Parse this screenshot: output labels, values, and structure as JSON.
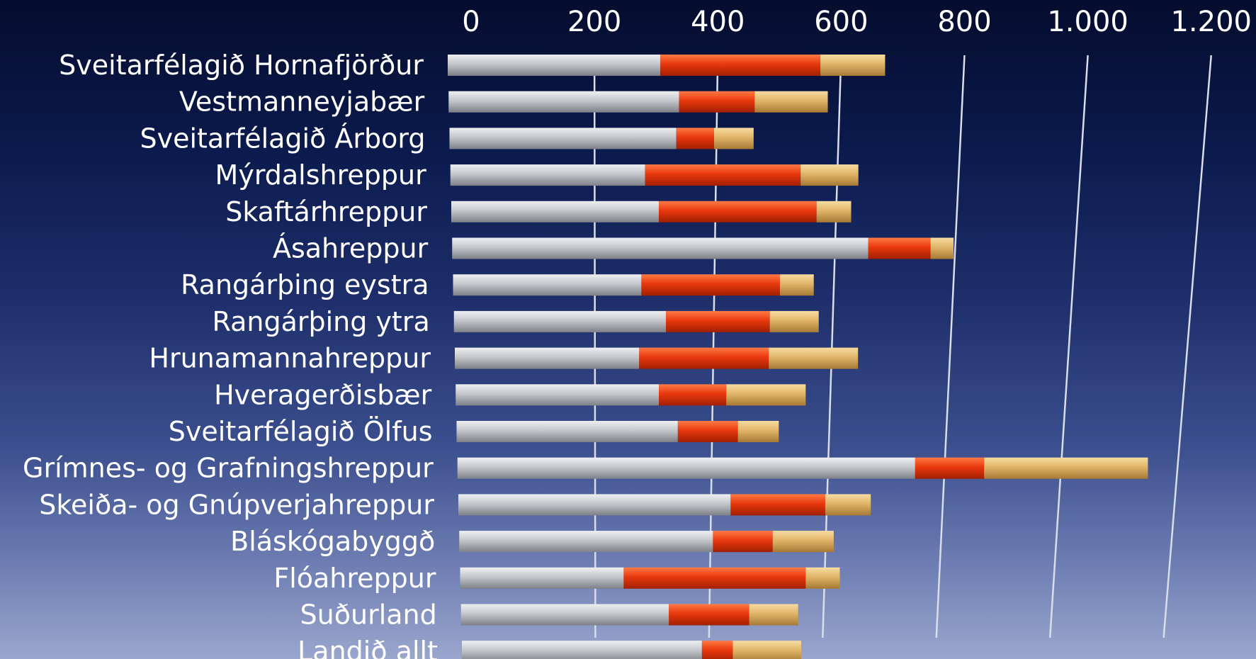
{
  "chart_data": {
    "type": "bar",
    "orientation": "horizontal",
    "stacked": true,
    "title": "",
    "xlabel": "",
    "ylabel": "",
    "xlim": [
      0,
      1200
    ],
    "x_ticks": [
      0,
      200,
      400,
      600,
      800,
      1000,
      1200
    ],
    "x_tick_labels": [
      "0",
      "200",
      "400",
      "600",
      "800",
      "1.000",
      "1.200"
    ],
    "grid": true,
    "legend": "none",
    "categories": [
      "Sveitarfélagið Hornafjörður",
      "Vestmanneyjabær",
      "Sveitarfélagið Árborg",
      "Mýrdalshreppur",
      "Skaftárhreppur",
      "Ásahreppur",
      "Rangárþing eystra",
      "Rangárþing ytra",
      "Hrunamannahreppur",
      "Hveragerðisbær",
      "Sveitarfélagið Ölfus",
      "Grímnes- og Grafningshreppur",
      "Skeiða- og Gnúpverjahreppur",
      "Bláskógabyggð",
      "Flóahreppur",
      "Suðurland",
      "Landið allt"
    ],
    "series": [
      {
        "color": "#c4c6ca",
        "values": [
          310,
          340,
          335,
          283,
          305,
          650,
          275,
          315,
          270,
          302,
          333,
          728,
          420,
          390,
          240,
          315,
          370
        ]
      },
      {
        "color": "#e8380d",
        "values": [
          262,
          124,
          62,
          256,
          260,
          103,
          229,
          172,
          215,
          112,
          100,
          115,
          158,
          100,
          305,
          135,
          52
        ]
      },
      {
        "color": "#e0b468",
        "values": [
          106,
          120,
          65,
          95,
          57,
          38,
          56,
          81,
          148,
          132,
          68,
          273,
          76,
          102,
          57,
          82,
          115
        ]
      }
    ]
  }
}
